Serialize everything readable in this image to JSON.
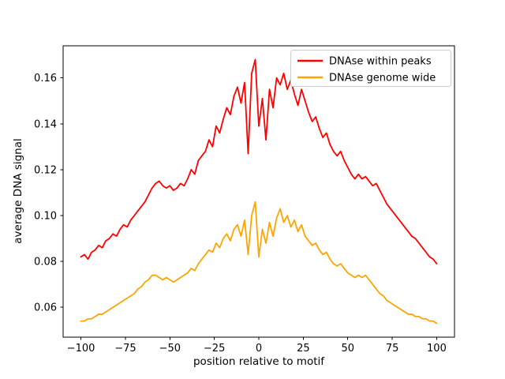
{
  "figure": {
    "background": "#ffffff",
    "axes_edge_color": "#000000",
    "tick_color": "#000000"
  },
  "chart_data": {
    "type": "line",
    "title": "",
    "xlabel": "position relative to motif",
    "ylabel": "average DNA signal",
    "xlim": [
      -110,
      110
    ],
    "ylim": [
      0.047,
      0.174
    ],
    "grid": false,
    "legend_position": "upper right",
    "legend_border_color": "#cccccc",
    "xtick_values": [
      -100,
      -75,
      -50,
      -25,
      0,
      25,
      50,
      75,
      100
    ],
    "xtick_labels": [
      "−100",
      "−75",
      "−50",
      "−25",
      "0",
      "25",
      "50",
      "75",
      "100"
    ],
    "ytick_values": [
      0.06,
      0.08,
      0.1,
      0.12,
      0.14,
      0.16
    ],
    "ytick_labels": [
      "0.06",
      "0.08",
      "0.10",
      "0.12",
      "0.14",
      "0.16"
    ],
    "x": [
      -100,
      -98,
      -96,
      -94,
      -92,
      -90,
      -88,
      -86,
      -84,
      -82,
      -80,
      -78,
      -76,
      -74,
      -72,
      -70,
      -68,
      -66,
      -64,
      -62,
      -60,
      -58,
      -56,
      -54,
      -52,
      -50,
      -48,
      -46,
      -44,
      -42,
      -40,
      -38,
      -36,
      -34,
      -32,
      -30,
      -28,
      -26,
      -24,
      -22,
      -20,
      -18,
      -16,
      -14,
      -12,
      -10,
      -8,
      -6,
      -4,
      -2,
      0,
      2,
      4,
      6,
      8,
      10,
      12,
      14,
      16,
      18,
      20,
      22,
      24,
      26,
      28,
      30,
      32,
      34,
      36,
      38,
      40,
      42,
      44,
      46,
      48,
      50,
      52,
      54,
      56,
      58,
      60,
      62,
      64,
      66,
      68,
      70,
      72,
      74,
      76,
      78,
      80,
      82,
      84,
      86,
      88,
      90,
      92,
      94,
      96,
      98,
      100
    ],
    "series": [
      {
        "name": "DNAse within peaks",
        "color": "#ff0000",
        "values": [
          0.082,
          0.083,
          0.081,
          0.084,
          0.085,
          0.087,
          0.086,
          0.089,
          0.09,
          0.092,
          0.091,
          0.094,
          0.096,
          0.095,
          0.098,
          0.1,
          0.102,
          0.104,
          0.106,
          0.109,
          0.112,
          0.114,
          0.115,
          0.113,
          0.112,
          0.113,
          0.111,
          0.112,
          0.114,
          0.113,
          0.116,
          0.12,
          0.118,
          0.124,
          0.126,
          0.128,
          0.133,
          0.13,
          0.139,
          0.136,
          0.142,
          0.147,
          0.144,
          0.152,
          0.156,
          0.149,
          0.158,
          0.127,
          0.162,
          0.168,
          0.139,
          0.151,
          0.133,
          0.155,
          0.147,
          0.16,
          0.157,
          0.162,
          0.155,
          0.159,
          0.153,
          0.148,
          0.155,
          0.15,
          0.145,
          0.141,
          0.143,
          0.138,
          0.134,
          0.136,
          0.131,
          0.128,
          0.126,
          0.128,
          0.124,
          0.121,
          0.118,
          0.116,
          0.118,
          0.116,
          0.117,
          0.115,
          0.113,
          0.114,
          0.111,
          0.108,
          0.105,
          0.103,
          0.101,
          0.099,
          0.097,
          0.095,
          0.093,
          0.091,
          0.09,
          0.088,
          0.086,
          0.084,
          0.082,
          0.081,
          0.079
        ]
      },
      {
        "name": "DNAse genome wide",
        "color": "#ffa500",
        "values": [
          0.054,
          0.054,
          0.055,
          0.055,
          0.056,
          0.057,
          0.057,
          0.058,
          0.059,
          0.06,
          0.061,
          0.062,
          0.063,
          0.064,
          0.065,
          0.066,
          0.068,
          0.069,
          0.071,
          0.072,
          0.074,
          0.074,
          0.073,
          0.072,
          0.073,
          0.072,
          0.071,
          0.072,
          0.073,
          0.074,
          0.075,
          0.077,
          0.076,
          0.079,
          0.081,
          0.083,
          0.085,
          0.084,
          0.088,
          0.086,
          0.09,
          0.092,
          0.089,
          0.094,
          0.096,
          0.091,
          0.098,
          0.083,
          0.1,
          0.106,
          0.082,
          0.094,
          0.088,
          0.097,
          0.091,
          0.099,
          0.103,
          0.097,
          0.1,
          0.095,
          0.098,
          0.093,
          0.096,
          0.091,
          0.089,
          0.087,
          0.088,
          0.085,
          0.083,
          0.084,
          0.081,
          0.079,
          0.078,
          0.079,
          0.077,
          0.075,
          0.074,
          0.073,
          0.074,
          0.073,
          0.074,
          0.072,
          0.07,
          0.068,
          0.066,
          0.065,
          0.063,
          0.062,
          0.061,
          0.06,
          0.059,
          0.058,
          0.057,
          0.057,
          0.056,
          0.056,
          0.055,
          0.055,
          0.054,
          0.054,
          0.053
        ]
      }
    ]
  }
}
